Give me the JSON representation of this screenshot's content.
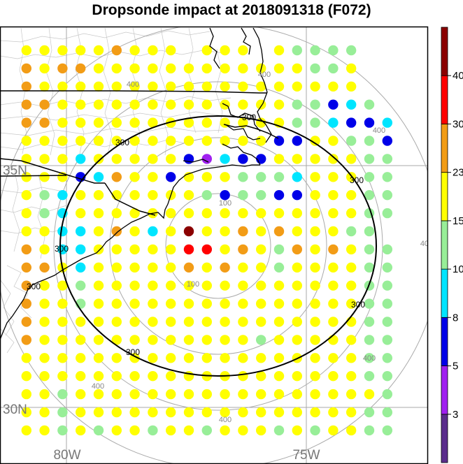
{
  "title": "Dropsonde impact at 2018091318 (F072)",
  "grid_labels": {
    "latitude": [
      "35N",
      "30N"
    ],
    "longitude": [
      "80W",
      "75W"
    ]
  },
  "range_rings": [
    "100",
    "100",
    "400",
    "400",
    "400",
    "400",
    "400",
    "400",
    "400"
  ],
  "contour_labels": [
    "300",
    "300",
    "300",
    "300",
    "300",
    "300",
    "300"
  ],
  "colorbar": {
    "colors": [
      "#5a2d8c",
      "#a020f0",
      "#0000e8",
      "#00e5ff",
      "#98ee98",
      "#ffff00",
      "#f29c16",
      "#ff0000",
      "#8b0000"
    ],
    "labels": [
      "3",
      "5",
      "8",
      "10",
      "15",
      "23",
      "30",
      "40"
    ]
  },
  "impact_colors": {
    "Y": "#ffff00",
    "G": "#98ee98",
    "C": "#00e5ff",
    "B": "#0000e8",
    "P": "#a020f0",
    "O": "#f29c16",
    "R": "#ff0000",
    "D": "#8b0000"
  },
  "dot_grid": [
    ".YYYYYOYYY.YYY.YGGGG",
    ".OYOOYYYYYYYYYYYYGGY",
    ".OYYYYYYYYYYYYYYYYYY",
    ".OOYYYYYYYYYYYYYGGBCG",
    ".OOYYYYYYYYYYYYYGGCBBC",
    ".YYYYYYYYYYYYYYBBYYGGB",
    ".YYYCYYYYYBPCBBYYYYYGG",
    ".YYYBCOYYBYYYGGGCYYYGG",
    ".YGCYYYYYYYGBGGBBYYYGG",
    ".YGCYYYYYYYYYYYYYYYYGG",
    ".YYCCYOYCYDYYOYOYYYGG",
    ".OYCCYYYYYRRYOYGOYOYGG",
    ".OOYCYYYYYOYOYYGYYYYGG",
    ".OYYGYYYYYYYYYYYYYYYGG",
    ".OYYGYYYYYYYYYYYYYYYGG",
    ".OYYYYYYYYYYYYYYYYYYGG",
    ".OYYYYYYYYYYYYGYYYYYGG",
    ".YYYYYYYYYYYYYYYYYYYGG",
    ".YYYYYYYYYYYYYYYYYYYGG",
    ".YYGYYYYYYYYYYYYYYYYYG",
    ".YYGYYYYYYYYYYYYYYYYGG",
    ".YYGYGYYGYYGYYYGYGYYGG"
  ]
}
